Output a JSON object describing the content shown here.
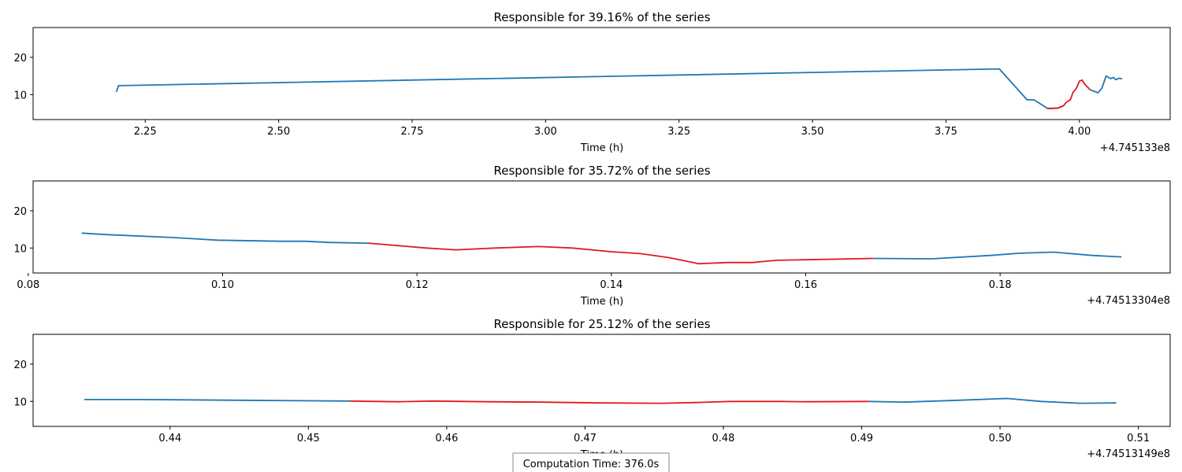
{
  "footer": {
    "computation_time": "Computation Time: 376.0s"
  },
  "colors": {
    "series": "#1f77b4",
    "highlight": "#e31a1c",
    "axis": "#000000"
  },
  "chart_data": [
    {
      "type": "line",
      "title": "Responsible for 39.16% of the series",
      "xlabel": "Time (h)",
      "ylabel": "",
      "x_offset_label": "+4.745133e8",
      "xlim": [
        2.04,
        4.17
      ],
      "ylim": [
        3.3,
        28
      ],
      "xticks": [
        2.25,
        2.5,
        2.75,
        3.0,
        3.25,
        3.5,
        3.75,
        4.0
      ],
      "xtick_labels": [
        "2.25",
        "2.50",
        "2.75",
        "3.00",
        "3.25",
        "3.50",
        "3.75",
        "4.00"
      ],
      "yticks": [
        10,
        20
      ],
      "ytick_labels": [
        "10",
        "20"
      ],
      "series": [
        {
          "x": [
            2.196,
            2.2,
            3.85,
            3.902,
            3.915,
            3.94,
            3.95,
            3.96,
            3.97
          ],
          "y": [
            10.7,
            12.4,
            16.9,
            8.6,
            8.6,
            6.3,
            6.3,
            6.4,
            7.0
          ]
        },
        {
          "highlight": true,
          "x": [
            3.94,
            3.95,
            3.96,
            3.97,
            3.976,
            3.983,
            3.988,
            3.994,
            4.0,
            4.005,
            4.01,
            4.02
          ],
          "y": [
            6.3,
            6.3,
            6.4,
            7.0,
            8.0,
            8.6,
            10.6,
            11.6,
            13.6,
            13.9,
            12.8,
            11.3
          ]
        },
        {
          "x": [
            4.02,
            4.035,
            4.042,
            4.05,
            4.058,
            4.064,
            4.068,
            4.075,
            4.08
          ],
          "y": [
            11.3,
            10.5,
            11.7,
            15.0,
            14.3,
            14.6,
            14.0,
            14.4,
            14.2
          ]
        }
      ]
    },
    {
      "type": "line",
      "title": "Responsible for 35.72% of the series",
      "xlabel": "Time (h)",
      "ylabel": "",
      "x_offset_label": "+4.74513304e8",
      "xlim": [
        0.0805,
        0.1975
      ],
      "ylim": [
        3.3,
        28
      ],
      "xticks": [
        0.08,
        0.1,
        0.12,
        0.14,
        0.16,
        0.18
      ],
      "xtick_labels": [
        "0.08",
        "0.10",
        "0.12",
        "0.14",
        "0.16",
        "0.18"
      ],
      "yticks": [
        10,
        20
      ],
      "ytick_labels": [
        "10",
        "20"
      ],
      "series": [
        {
          "x": [
            0.0855,
            0.088,
            0.095,
            0.0995,
            0.106,
            0.1085,
            0.111,
            0.115
          ],
          "y": [
            14.0,
            13.6,
            12.8,
            12.1,
            11.8,
            11.8,
            11.5,
            11.3
          ]
        },
        {
          "highlight": true,
          "x": [
            0.115,
            0.121,
            0.124,
            0.128,
            0.1325,
            0.136,
            0.14,
            0.143,
            0.146,
            0.149,
            0.152,
            0.1545,
            0.157,
            0.167
          ],
          "y": [
            11.3,
            10.0,
            9.5,
            10.0,
            10.4,
            10.0,
            9.0,
            8.5,
            7.4,
            5.8,
            6.1,
            6.1,
            6.7,
            7.2
          ]
        },
        {
          "x": [
            0.167,
            0.173,
            0.179,
            0.182,
            0.1855,
            0.1895,
            0.1925
          ],
          "y": [
            7.2,
            7.1,
            8.0,
            8.6,
            8.9,
            8.0,
            7.6
          ]
        }
      ]
    },
    {
      "type": "line",
      "title": "Responsible for 25.12% of the series",
      "xlabel": "Time (h)",
      "ylabel": "",
      "x_offset_label": "+4.74513149e8",
      "xlim": [
        0.4301,
        0.5123
      ],
      "ylim": [
        3.3,
        28
      ],
      "xticks": [
        0.44,
        0.45,
        0.46,
        0.47,
        0.48,
        0.49,
        0.5,
        0.51
      ],
      "xtick_labels": [
        "0.44",
        "0.45",
        "0.46",
        "0.47",
        "0.48",
        "0.49",
        "0.50",
        "0.51"
      ],
      "yticks": [
        10,
        20
      ],
      "ytick_labels": [
        "10",
        "20"
      ],
      "series": [
        {
          "x": [
            0.4338,
            0.438,
            0.445,
            0.453
          ],
          "y": [
            10.5,
            10.5,
            10.3,
            10.1
          ]
        },
        {
          "highlight": true,
          "x": [
            0.453,
            0.4565,
            0.459,
            0.463,
            0.467,
            0.471,
            0.4755,
            0.478,
            0.4805,
            0.484,
            0.486,
            0.4905
          ],
          "y": [
            10.1,
            9.9,
            10.1,
            9.9,
            9.8,
            9.6,
            9.5,
            9.7,
            10.0,
            10.0,
            9.9,
            10.0
          ]
        },
        {
          "x": [
            0.4905,
            0.493,
            0.497,
            0.5005,
            0.503,
            0.5058,
            0.5084
          ],
          "y": [
            10.0,
            9.8,
            10.3,
            10.8,
            10.0,
            9.5,
            9.6
          ]
        }
      ]
    }
  ]
}
